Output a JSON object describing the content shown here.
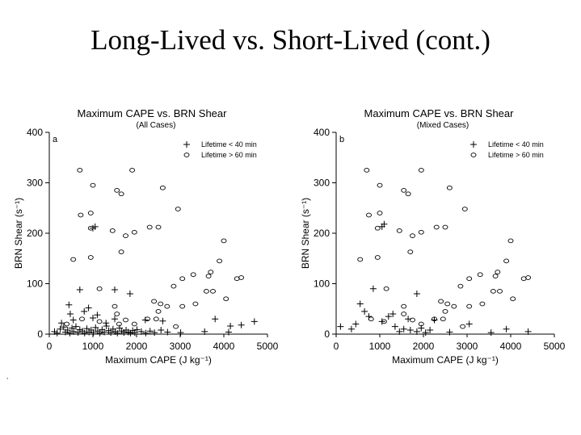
{
  "slide": {
    "title": "Long-Lived vs. Short-Lived (cont.)",
    "footnote_mark": ","
  },
  "chart_data": [
    {
      "type": "scatter",
      "panel_letter": "a",
      "title": "Maximum CAPE vs. BRN Shear",
      "subtitle": "(All Cases)",
      "xlabel": "Maximum CAPE (J kg⁻¹)",
      "ylabel": "BRN Shear (s⁻¹)",
      "xlim": [
        0,
        5000
      ],
      "ylim": [
        0,
        400
      ],
      "xticks": [
        0,
        1000,
        2000,
        3000,
        4000,
        5000
      ],
      "yticks": [
        0,
        100,
        200,
        300,
        400
      ],
      "grid": false,
      "legend_position": "top-right",
      "series": [
        {
          "name": "Lifetime < 40 min",
          "marker": "plus",
          "points": [
            [
              120,
              5
            ],
            [
              180,
              2
            ],
            [
              250,
              10
            ],
            [
              280,
              22
            ],
            [
              330,
              14
            ],
            [
              370,
              4
            ],
            [
              420,
              8
            ],
            [
              470,
              2
            ],
            [
              520,
              12
            ],
            [
              560,
              5
            ],
            [
              610,
              15
            ],
            [
              660,
              3
            ],
            [
              700,
              9
            ],
            [
              760,
              6
            ],
            [
              810,
              2
            ],
            [
              860,
              11
            ],
            [
              910,
              4
            ],
            [
              960,
              8
            ],
            [
              1010,
              3
            ],
            [
              1060,
              13
            ],
            [
              1110,
              6
            ],
            [
              1160,
              2
            ],
            [
              1210,
              9
            ],
            [
              1260,
              4
            ],
            [
              1310,
              16
            ],
            [
              1360,
              7
            ],
            [
              1410,
              3
            ],
            [
              1460,
              10
            ],
            [
              1510,
              5
            ],
            [
              1560,
              2
            ],
            [
              1610,
              12
            ],
            [
              1660,
              6
            ],
            [
              1710,
              3
            ],
            [
              1760,
              8
            ],
            [
              1810,
              4
            ],
            [
              1860,
              2
            ],
            [
              1910,
              7
            ],
            [
              1960,
              3
            ],
            [
              2010,
              9
            ],
            [
              2110,
              5
            ],
            [
              2210,
              2
            ],
            [
              2310,
              6
            ],
            [
              2410,
              3
            ],
            [
              2560,
              8
            ],
            [
              2710,
              4
            ],
            [
              3010,
              3
            ],
            [
              3560,
              5
            ],
            [
              4110,
              4
            ],
            [
              4400,
              18
            ],
            [
              4700,
              25
            ],
            [
              480,
              40
            ],
            [
              550,
              28
            ],
            [
              800,
              45
            ],
            [
              1100,
              38
            ],
            [
              1300,
              22
            ],
            [
              700,
              88
            ],
            [
              1850,
              80
            ],
            [
              450,
              58
            ],
            [
              900,
              52
            ],
            [
              1000,
              32
            ],
            [
              1500,
              30
            ],
            [
              1500,
              88
            ],
            [
              1000,
              210
            ],
            [
              1050,
              213
            ],
            [
              2200,
              28
            ],
            [
              2600,
              26
            ],
            [
              3800,
              30
            ],
            [
              4150,
              16
            ]
          ]
        },
        {
          "name": "Lifetime > 60 min",
          "marker": "circle",
          "points": [
            [
              700,
              325
            ],
            [
              1000,
              295
            ],
            [
              1550,
              285
            ],
            [
              1650,
              278
            ],
            [
              1900,
              325
            ],
            [
              2600,
              290
            ],
            [
              2950,
              248
            ],
            [
              720,
              236
            ],
            [
              950,
              240
            ],
            [
              950,
              210
            ],
            [
              1450,
              205
            ],
            [
              1750,
              195
            ],
            [
              1950,
              202
            ],
            [
              2300,
              212
            ],
            [
              2500,
              212
            ],
            [
              4000,
              185
            ],
            [
              550,
              148
            ],
            [
              950,
              152
            ],
            [
              1650,
              163
            ],
            [
              1150,
              90
            ],
            [
              3050,
              110
            ],
            [
              3300,
              118
            ],
            [
              3700,
              123
            ],
            [
              3900,
              145
            ],
            [
              2850,
              95
            ],
            [
              3650,
              115
            ],
            [
              3750,
              85
            ],
            [
              4050,
              70
            ],
            [
              4300,
              110
            ],
            [
              4400,
              112
            ],
            [
              3600,
              85
            ],
            [
              3050,
              55
            ],
            [
              3350,
              60
            ],
            [
              2700,
              55
            ],
            [
              2400,
              65
            ],
            [
              2500,
              45
            ],
            [
              1500,
              55
            ],
            [
              1150,
              25
            ],
            [
              750,
              30
            ],
            [
              400,
              20
            ],
            [
              1550,
              40
            ],
            [
              1750,
              28
            ],
            [
              2450,
              30
            ],
            [
              2250,
              30
            ],
            [
              2900,
              15
            ],
            [
              1950,
              20
            ],
            [
              1600,
              20
            ],
            [
              2550,
              60
            ]
          ]
        }
      ]
    },
    {
      "type": "scatter",
      "panel_letter": "b",
      "title": "Maximum CAPE vs. BRN Shear",
      "subtitle": "(Mixed Cases)",
      "xlabel": "Maximum CAPE (J kg⁻¹)",
      "ylabel": "BRN Shear (s⁻¹)",
      "xlim": [
        0,
        5000
      ],
      "ylim": [
        0,
        400
      ],
      "xticks": [
        0,
        1000,
        2000,
        3000,
        4000,
        5000
      ],
      "yticks": [
        0,
        100,
        200,
        300,
        400
      ],
      "grid": false,
      "legend_position": "top-right",
      "series": [
        {
          "name": "Lifetime < 40 min",
          "marker": "plus",
          "points": [
            [
              100,
              15
            ],
            [
              350,
              10
            ],
            [
              450,
              20
            ],
            [
              550,
              60
            ],
            [
              650,
              45
            ],
            [
              750,
              35
            ],
            [
              850,
              90
            ],
            [
              1050,
              25
            ],
            [
              1200,
              35
            ],
            [
              1350,
              15
            ],
            [
              1450,
              5
            ],
            [
              1550,
              10
            ],
            [
              1700,
              8
            ],
            [
              1850,
              5
            ],
            [
              1950,
              12
            ],
            [
              2050,
              3
            ],
            [
              2150,
              8
            ],
            [
              1850,
              80
            ],
            [
              1050,
              213
            ],
            [
              1100,
              218
            ],
            [
              2600,
              4
            ],
            [
              3550,
              3
            ],
            [
              4400,
              5
            ],
            [
              3900,
              10
            ],
            [
              3050,
              20
            ],
            [
              2250,
              28
            ],
            [
              1650,
              30
            ],
            [
              1300,
              40
            ]
          ]
        },
        {
          "name": "Lifetime > 60 min",
          "marker": "circle",
          "points": [
            [
              700,
              325
            ],
            [
              1000,
              295
            ],
            [
              1550,
              285
            ],
            [
              1650,
              278
            ],
            [
              1950,
              325
            ],
            [
              2600,
              290
            ],
            [
              2950,
              248
            ],
            [
              750,
              236
            ],
            [
              1000,
              240
            ],
            [
              950,
              210
            ],
            [
              1450,
              205
            ],
            [
              1750,
              195
            ],
            [
              1950,
              202
            ],
            [
              2300,
              212
            ],
            [
              2500,
              212
            ],
            [
              4000,
              185
            ],
            [
              550,
              148
            ],
            [
              950,
              152
            ],
            [
              1700,
              163
            ],
            [
              1150,
              90
            ],
            [
              3050,
              110
            ],
            [
              3300,
              118
            ],
            [
              3700,
              123
            ],
            [
              3900,
              145
            ],
            [
              2850,
              95
            ],
            [
              3650,
              115
            ],
            [
              3750,
              85
            ],
            [
              4050,
              70
            ],
            [
              4300,
              110
            ],
            [
              4400,
              112
            ],
            [
              3600,
              85
            ],
            [
              3050,
              55
            ],
            [
              3350,
              60
            ],
            [
              2700,
              55
            ],
            [
              2400,
              65
            ],
            [
              2500,
              45
            ],
            [
              1550,
              55
            ],
            [
              1100,
              25
            ],
            [
              800,
              30
            ],
            [
              1550,
              40
            ],
            [
              1750,
              28
            ],
            [
              2450,
              30
            ],
            [
              2250,
              30
            ],
            [
              2900,
              15
            ],
            [
              1950,
              20
            ],
            [
              2550,
              60
            ]
          ]
        }
      ]
    }
  ]
}
